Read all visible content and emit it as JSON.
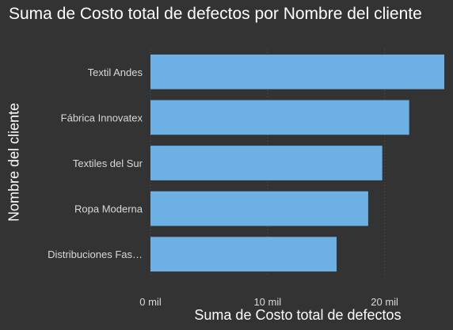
{
  "chart_data": {
    "type": "bar",
    "orientation": "horizontal",
    "title": "Suma de Costo total de defectos por Nombre del cliente",
    "xlabel": "Suma de Costo total de defectos",
    "ylabel": "Nombre del cliente",
    "categories": [
      "Textil Andes",
      "Fábrica Innovatex",
      "Textiles del Sur",
      "Ropa Moderna",
      "Distribuciones Fas…"
    ],
    "values": [
      25100,
      22100,
      19800,
      18600,
      15900
    ],
    "xlim": [
      0,
      25100
    ],
    "xticks": [
      0,
      10000,
      20000
    ],
    "xtick_labels": [
      "0 mil",
      "10 mil",
      "20 mil"
    ],
    "grid": true,
    "bar_color": "#6cb0e4",
    "background_color": "#333333",
    "grid_color": "#555555"
  }
}
